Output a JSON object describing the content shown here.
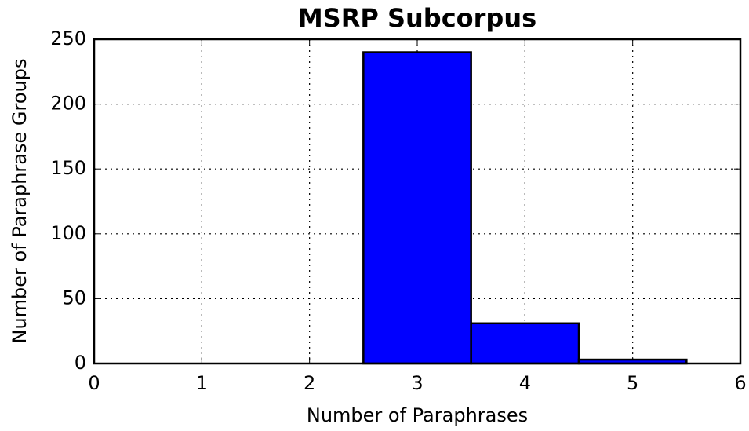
{
  "chart_data": {
    "type": "histogram",
    "title": "MSRP Subcorpus",
    "xlabel": "Number of Paraphrases",
    "ylabel": "Number of Paraphrase Groups",
    "bins": [
      2.5,
      3.5,
      4.5,
      5.5
    ],
    "values": [
      240,
      31,
      3
    ],
    "color": "#0000ff",
    "xlim": [
      0,
      6
    ],
    "xticks": [
      0,
      1,
      2,
      3,
      4,
      5,
      6
    ],
    "ylim": [
      0,
      250
    ],
    "yticks": [
      0,
      50,
      100,
      150,
      200,
      250
    ],
    "grid": true
  }
}
